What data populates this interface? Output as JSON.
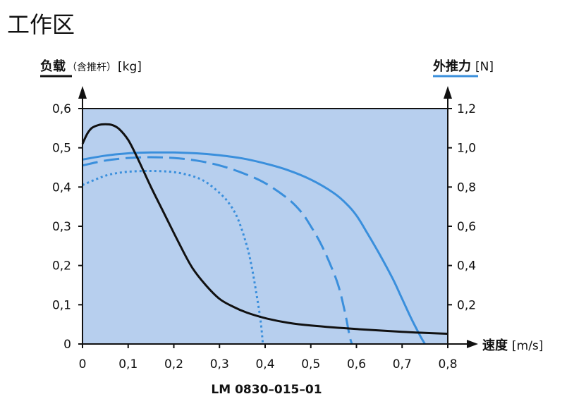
{
  "page": {
    "heading": "工作区"
  },
  "chart_data": {
    "type": "line",
    "model": "LM 0830–015–01",
    "x_axis": {
      "title": "速度",
      "unit": "[m/s]",
      "range": [
        0,
        0.8
      ],
      "ticks": [
        "0",
        "0,1",
        "0,2",
        "0,3",
        "0,4",
        "0,5",
        "0,6",
        "0,7",
        "0,8"
      ]
    },
    "y_axis_left": {
      "title": "负载",
      "note": "（含推杆）",
      "unit": "[kg]",
      "range": [
        0,
        0.6
      ],
      "ticks": [
        "0",
        "0,1",
        "0,2",
        "0,3",
        "0,4",
        "0,5",
        "0,6"
      ],
      "line_color": "#111111"
    },
    "y_axis_right": {
      "title": "外推力",
      "unit": "[N]",
      "range": [
        0,
        1.2
      ],
      "ticks": [
        "0,2",
        "0,4",
        "0,6",
        "0,8",
        "1,0",
        "1,2"
      ],
      "line_color": "#3a8fdc"
    },
    "colors": {
      "plot_bg": "#b7cfee",
      "blue": "#3a8fdc",
      "black": "#111111"
    },
    "series": [
      {
        "axis": "left",
        "style": "solid",
        "color": "#111111",
        "points": [
          [
            0,
            0.51
          ],
          [
            0.01,
            0.535
          ],
          [
            0.02,
            0.55
          ],
          [
            0.035,
            0.558
          ],
          [
            0.05,
            0.56
          ],
          [
            0.065,
            0.558
          ],
          [
            0.08,
            0.548
          ],
          [
            0.1,
            0.52
          ],
          [
            0.12,
            0.475
          ],
          [
            0.15,
            0.4
          ],
          [
            0.18,
            0.33
          ],
          [
            0.21,
            0.26
          ],
          [
            0.24,
            0.195
          ],
          [
            0.27,
            0.15
          ],
          [
            0.3,
            0.115
          ],
          [
            0.33,
            0.095
          ],
          [
            0.36,
            0.08
          ],
          [
            0.4,
            0.066
          ],
          [
            0.45,
            0.054
          ],
          [
            0.5,
            0.047
          ],
          [
            0.6,
            0.038
          ],
          [
            0.7,
            0.031
          ],
          [
            0.8,
            0.026
          ]
        ]
      },
      {
        "axis": "right",
        "style": "solid",
        "color": "#3a8fdc",
        "points": [
          [
            0,
            0.94
          ],
          [
            0.05,
            0.96
          ],
          [
            0.1,
            0.972
          ],
          [
            0.15,
            0.976
          ],
          [
            0.2,
            0.976
          ],
          [
            0.25,
            0.972
          ],
          [
            0.3,
            0.962
          ],
          [
            0.35,
            0.946
          ],
          [
            0.4,
            0.92
          ],
          [
            0.45,
            0.886
          ],
          [
            0.5,
            0.838
          ],
          [
            0.55,
            0.77
          ],
          [
            0.58,
            0.71
          ],
          [
            0.6,
            0.655
          ],
          [
            0.62,
            0.58
          ],
          [
            0.65,
            0.46
          ],
          [
            0.68,
            0.33
          ],
          [
            0.7,
            0.23
          ],
          [
            0.72,
            0.13
          ],
          [
            0.74,
            0.04
          ],
          [
            0.75,
            0
          ]
        ]
      },
      {
        "axis": "right",
        "style": "dashed",
        "color": "#3a8fdc",
        "points": [
          [
            0,
            0.91
          ],
          [
            0.05,
            0.935
          ],
          [
            0.1,
            0.948
          ],
          [
            0.15,
            0.952
          ],
          [
            0.2,
            0.948
          ],
          [
            0.25,
            0.935
          ],
          [
            0.3,
            0.91
          ],
          [
            0.35,
            0.872
          ],
          [
            0.4,
            0.82
          ],
          [
            0.45,
            0.74
          ],
          [
            0.48,
            0.67
          ],
          [
            0.5,
            0.6
          ],
          [
            0.52,
            0.52
          ],
          [
            0.54,
            0.42
          ],
          [
            0.56,
            0.3
          ],
          [
            0.575,
            0.16
          ],
          [
            0.585,
            0.04
          ],
          [
            0.59,
            0
          ]
        ]
      },
      {
        "axis": "right",
        "style": "dotted",
        "color": "#3a8fdc",
        "points": [
          [
            0,
            0.81
          ],
          [
            0.03,
            0.84
          ],
          [
            0.06,
            0.864
          ],
          [
            0.1,
            0.878
          ],
          [
            0.15,
            0.882
          ],
          [
            0.2,
            0.876
          ],
          [
            0.24,
            0.856
          ],
          [
            0.27,
            0.826
          ],
          [
            0.3,
            0.77
          ],
          [
            0.32,
            0.72
          ],
          [
            0.34,
            0.64
          ],
          [
            0.36,
            0.5
          ],
          [
            0.37,
            0.4
          ],
          [
            0.38,
            0.27
          ],
          [
            0.39,
            0.12
          ],
          [
            0.395,
            0
          ]
        ]
      }
    ]
  }
}
